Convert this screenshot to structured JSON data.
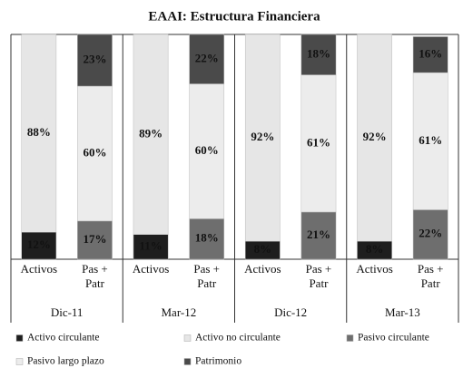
{
  "chart_data": {
    "type": "stacked_bar",
    "title": "EAAI: Estructura Financiera",
    "groups": [
      "Dic-11",
      "Mar-12",
      "Dic-12",
      "Mar-13"
    ],
    "categories": [
      "Activos",
      "Pas + Patr",
      "Activos",
      "Pas + Patr",
      "Activos",
      "Pas + Patr",
      "Activos",
      "Pas + Patr"
    ],
    "ylim": [
      0,
      100
    ],
    "series": [
      {
        "name": "Activo circulante",
        "color": "#1e1e1e",
        "values": [
          12,
          null,
          11,
          null,
          8,
          null,
          8,
          null
        ],
        "value_labels": [
          "12%",
          null,
          "11%",
          null,
          "8%",
          null,
          "8%",
          null
        ]
      },
      {
        "name": "Activo no circulante",
        "color": "#e6e6e6",
        "values": [
          88,
          null,
          89,
          null,
          92,
          null,
          92,
          null
        ],
        "value_labels": [
          "88%",
          null,
          "89%",
          null,
          "92%",
          null,
          "92%",
          null
        ]
      },
      {
        "name": "Pasivo circulante",
        "color": "#6e6e6e",
        "values": [
          null,
          17,
          null,
          18,
          null,
          21,
          null,
          22
        ],
        "value_labels": [
          null,
          "17%",
          null,
          "18%",
          null,
          "21%",
          null,
          "22%"
        ]
      },
      {
        "name": "Pasivo largo plazo",
        "color": "#ececec",
        "values": [
          null,
          60,
          null,
          60,
          null,
          61,
          null,
          61
        ],
        "value_labels": [
          null,
          "60%",
          null,
          "60%",
          null,
          "61%",
          null,
          "61%"
        ]
      },
      {
        "name": "Patrimonio",
        "color": "#4a4a4a",
        "values": [
          null,
          23,
          null,
          22,
          null,
          18,
          null,
          16
        ],
        "value_labels": [
          null,
          "23%",
          null,
          "22%",
          null,
          "18%",
          null,
          "16%"
        ]
      }
    ]
  }
}
